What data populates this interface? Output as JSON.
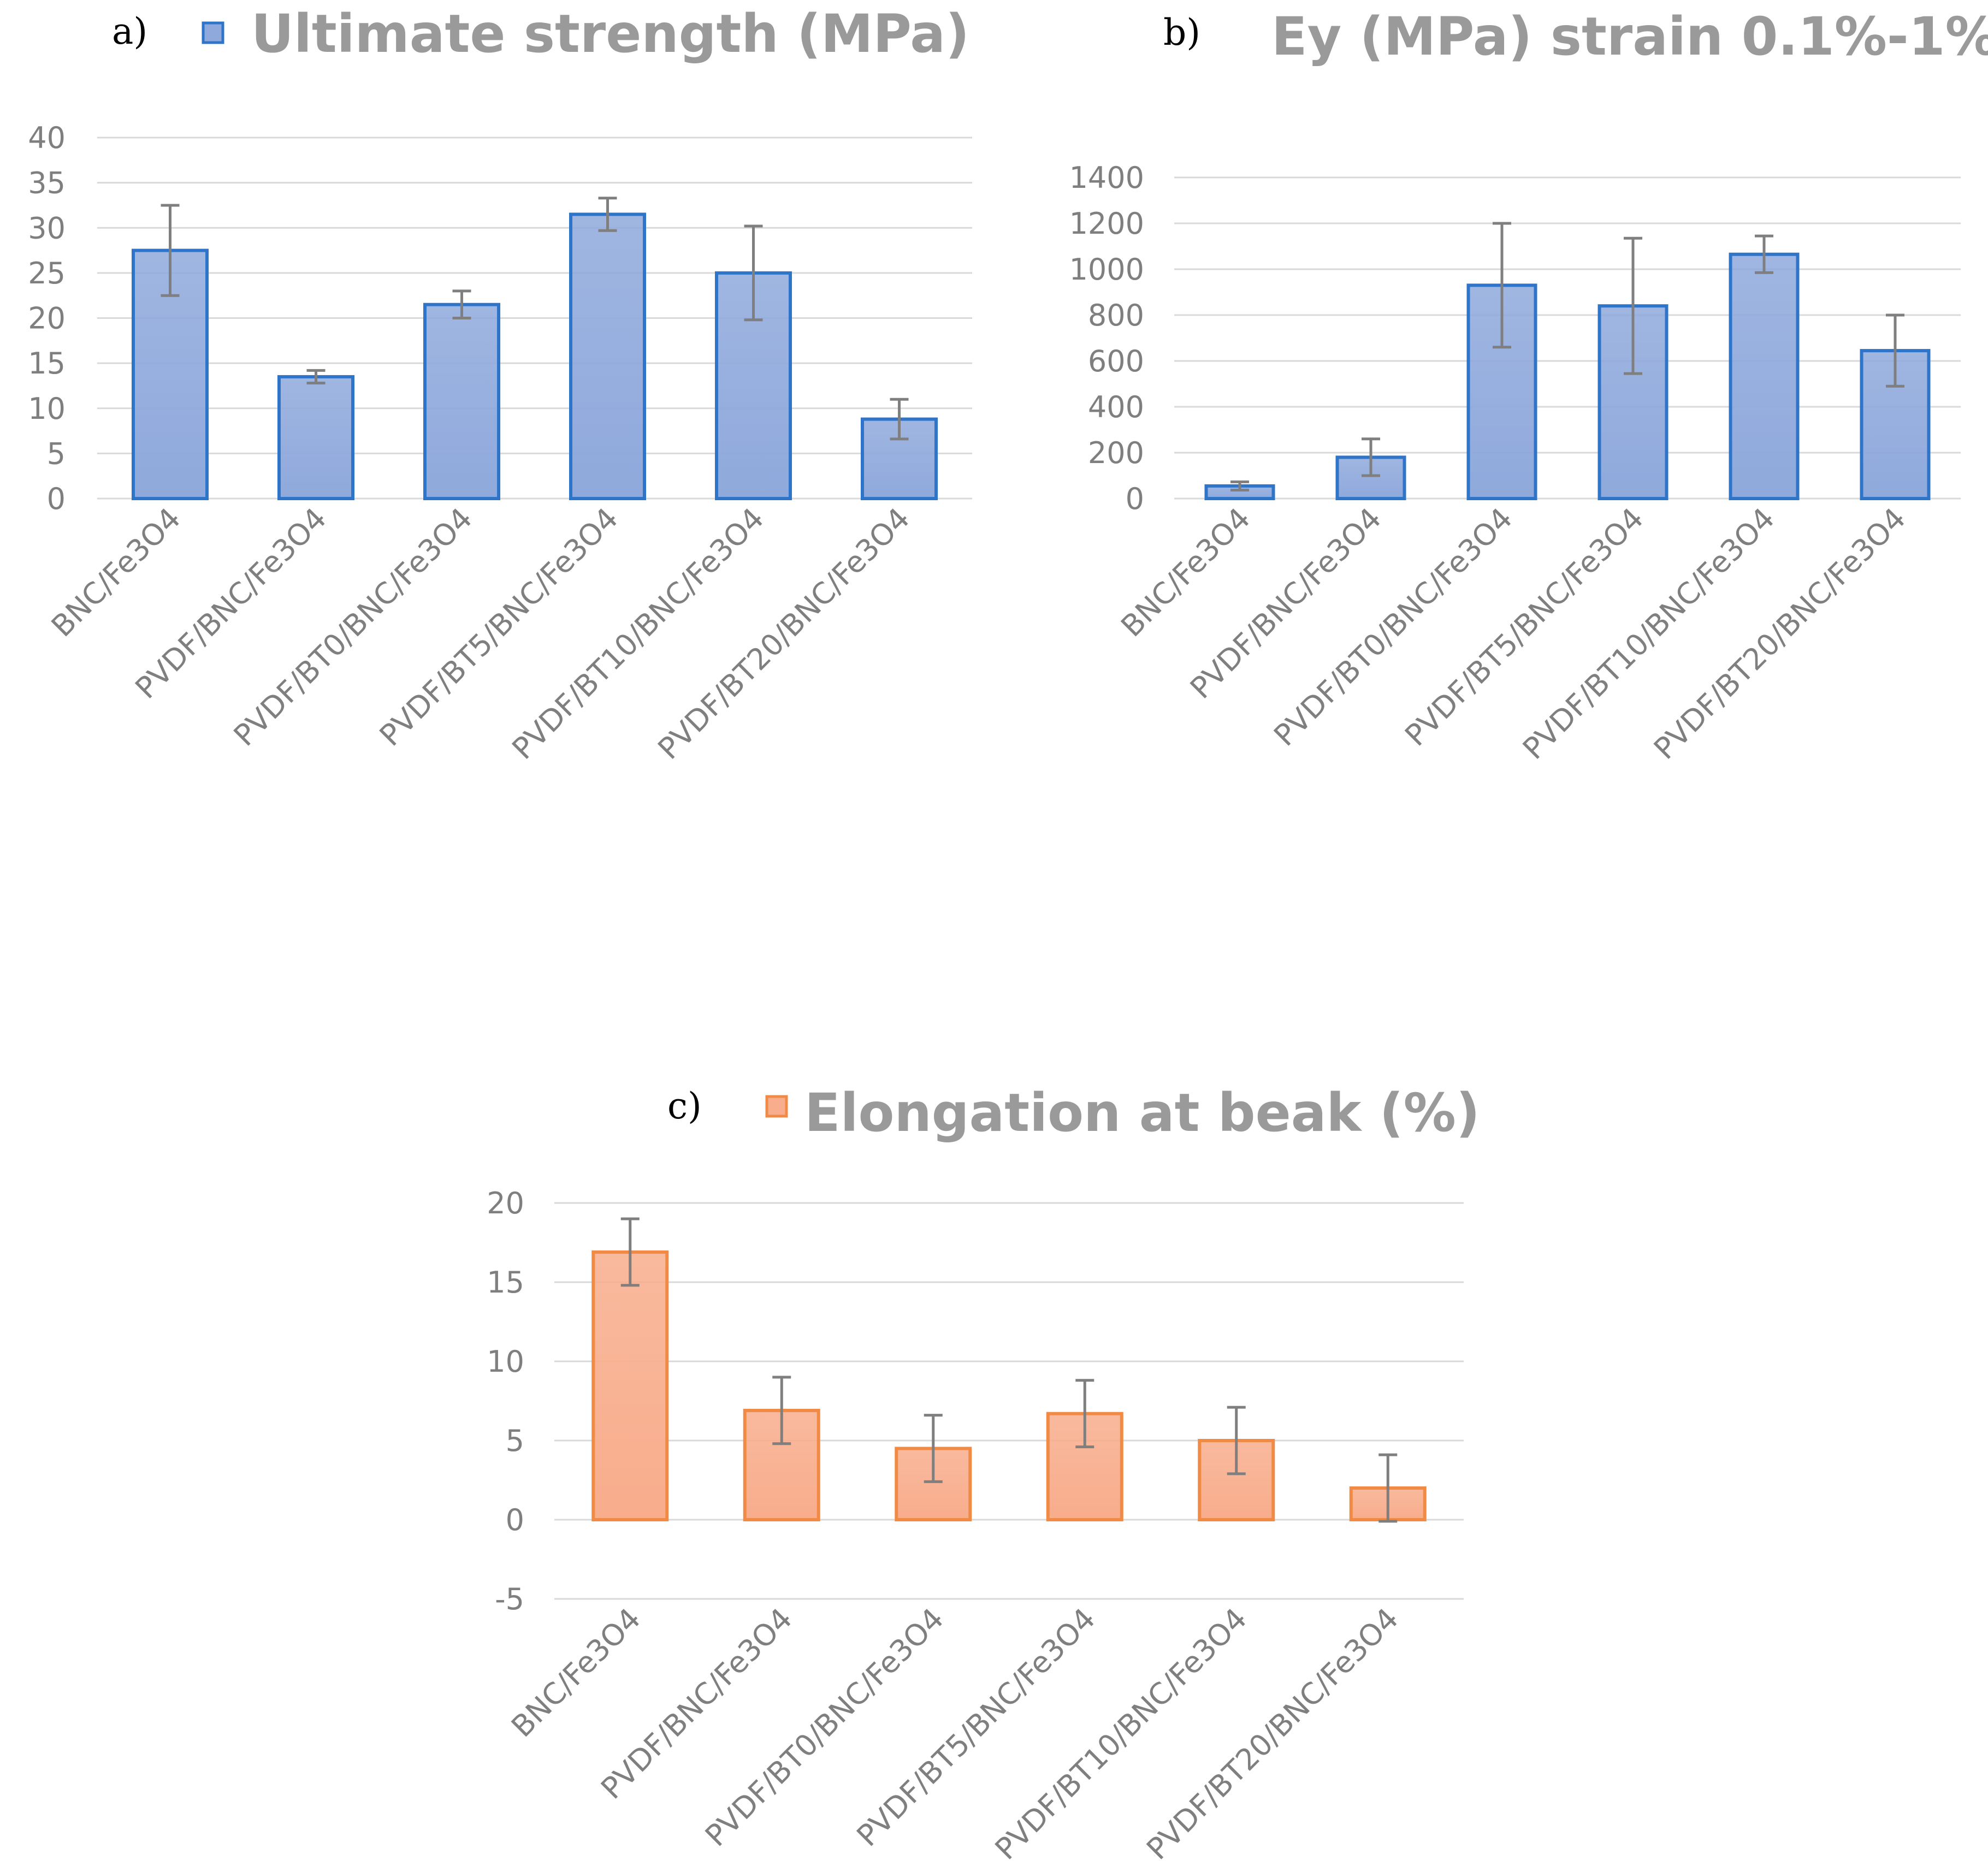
{
  "chart_data": [
    {
      "type": "bar",
      "panel": "a)",
      "title": "Ultimate strength (MPa)",
      "legend": "Ultimate strength (MPa)",
      "xlabel": "",
      "ylabel": "",
      "categories": [
        "BNC/Fe3O4",
        "PVDF/BNC/Fe3O4",
        "PVDF/BT0/BNC/Fe3O4",
        "PVDF/BT5/BNC/Fe3O4",
        "PVDF/BT10/BNC/Fe3O4",
        "PVDF/BT20/BNC/Fe3O4"
      ],
      "values": [
        27.5,
        13.5,
        21.5,
        31.5,
        25,
        8.8
      ],
      "errors": [
        5,
        0.7,
        1.5,
        1.8,
        5.2,
        2.2
      ],
      "ylim": [
        0,
        40
      ],
      "yticks": [
        0,
        5,
        10,
        15,
        20,
        25,
        30,
        35,
        40
      ],
      "ytick_labels": [
        "0",
        "5",
        "10",
        "15",
        "20",
        "25",
        "30",
        "35",
        "40"
      ],
      "grid": true,
      "bar_color": "#8fa9dc",
      "bar_edge_color": "#2e75c9"
    },
    {
      "type": "bar",
      "panel": "b)",
      "title": "Ey (MPa) strain 0.1%-1%",
      "legend": "",
      "xlabel": "",
      "ylabel": "",
      "categories": [
        "BNC/Fe3O4",
        "PVDF/BNC/Fe3O4",
        "PVDF/BT0/BNC/Fe3O4",
        "PVDF/BT5/BNC/Fe3O4",
        "PVDF/BT10/BNC/Fe3O4",
        "PVDF/BT20/BNC/Fe3O4"
      ],
      "values": [
        55,
        180,
        930,
        840,
        1065,
        645
      ],
      "errors": [
        18,
        80,
        270,
        295,
        80,
        155
      ],
      "ylim": [
        0,
        1400
      ],
      "yticks": [
        0,
        200,
        400,
        600,
        800,
        1000,
        1200,
        1400
      ],
      "ytick_labels": [
        "0",
        "200",
        "400",
        "600",
        "800",
        "1000",
        "1200",
        "1400"
      ],
      "grid": true,
      "bar_color": "#8fa9dc",
      "bar_edge_color": "#2e75c9"
    },
    {
      "type": "bar",
      "panel": "c)",
      "title": "Elongation at beak (%)",
      "legend": "Elongation at beak (%)",
      "xlabel": "",
      "ylabel": "",
      "categories": [
        "BNC/Fe3O4",
        "PVDF/BNC/Fe3O4",
        "PVDF/BT0/BNC/Fe3O4",
        "PVDF/BT5/BNC/Fe3O4",
        "PVDF/BT10/BNC/Fe3O4",
        "PVDF/BT20/BNC/Fe3O4"
      ],
      "values": [
        16.9,
        6.9,
        4.5,
        6.7,
        5,
        2
      ],
      "errors": [
        2.1,
        2.1,
        2.1,
        2.1,
        2.1,
        2.1
      ],
      "ylim": [
        -5,
        20
      ],
      "yticks": [
        -5,
        0,
        5,
        10,
        15,
        20
      ],
      "ytick_labels": [
        "-5",
        "0",
        "5",
        "10",
        "15",
        "20"
      ],
      "grid": true,
      "bar_color": "#f8ad8c",
      "bar_edge_color": "#f08a45"
    }
  ]
}
